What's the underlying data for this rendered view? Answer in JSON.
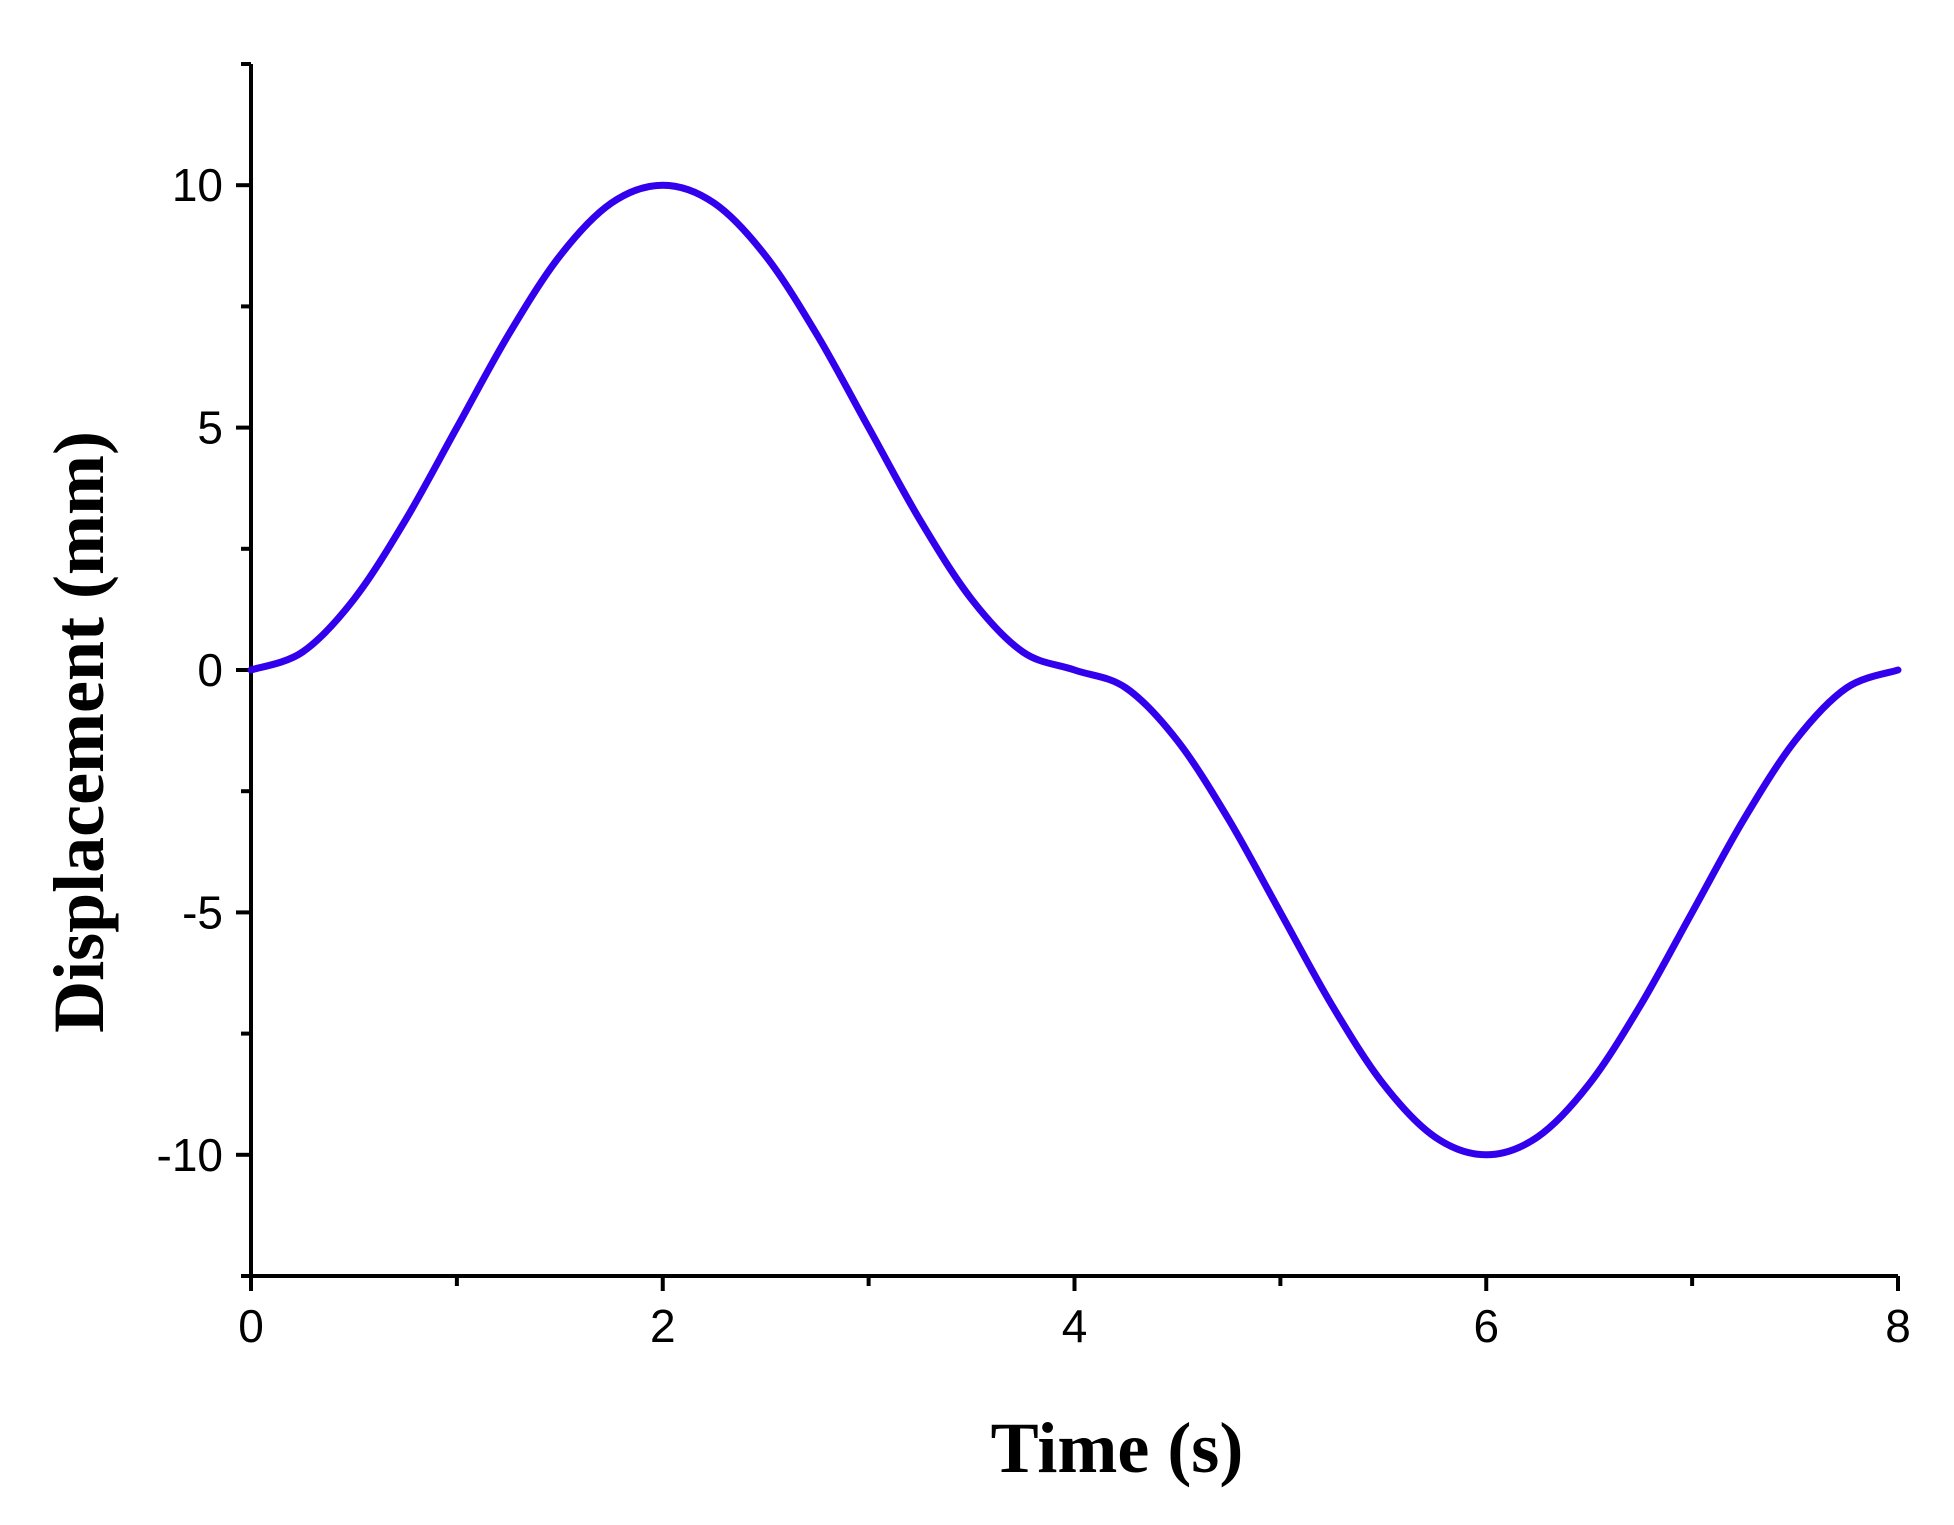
{
  "chart_data": {
    "type": "line",
    "title": "",
    "xlabel": "Time (s)",
    "ylabel": "Displacement (mm)",
    "xlim": [
      0,
      8
    ],
    "ylim": [
      -12.5,
      12.5
    ],
    "x_ticks": [
      0,
      2,
      4,
      6,
      8
    ],
    "x_tick_labels": [
      "0",
      "2",
      "4",
      "6",
      "8"
    ],
    "x_minor_ticks": [
      1,
      3,
      5,
      7
    ],
    "y_ticks": [
      10,
      5,
      0,
      -5,
      -10
    ],
    "y_tick_labels": [
      "10",
      "5",
      "0",
      "-5",
      "-10"
    ],
    "y_minor_ticks": [
      12.5,
      7.5,
      2.5,
      -2.5,
      -7.5,
      -12.5
    ],
    "grid": false,
    "legend": "none",
    "line_color": "#3300ee",
    "series": [
      {
        "x": [
          0,
          0.25,
          0.5,
          0.75,
          1,
          1.25,
          1.5,
          1.75,
          2,
          2.25,
          2.5,
          2.75,
          3,
          3.25,
          3.5,
          3.75,
          4,
          4.25,
          4.5,
          4.75,
          5,
          5.25,
          5.5,
          5.75,
          6,
          6.25,
          6.5,
          6.75,
          7,
          7.25,
          7.5,
          7.75,
          8
        ],
        "y": [
          0,
          0.37,
          1.46,
          3.09,
          5.0,
          6.91,
          8.54,
          9.63,
          10.0,
          9.63,
          8.54,
          6.91,
          5.0,
          3.09,
          1.46,
          0.37,
          0,
          -0.37,
          -1.46,
          -3.09,
          -5.0,
          -6.91,
          -8.54,
          -9.63,
          -10.0,
          -9.63,
          -8.54,
          -6.91,
          -5.0,
          -3.09,
          -1.46,
          -0.37,
          0
        ]
      }
    ]
  }
}
